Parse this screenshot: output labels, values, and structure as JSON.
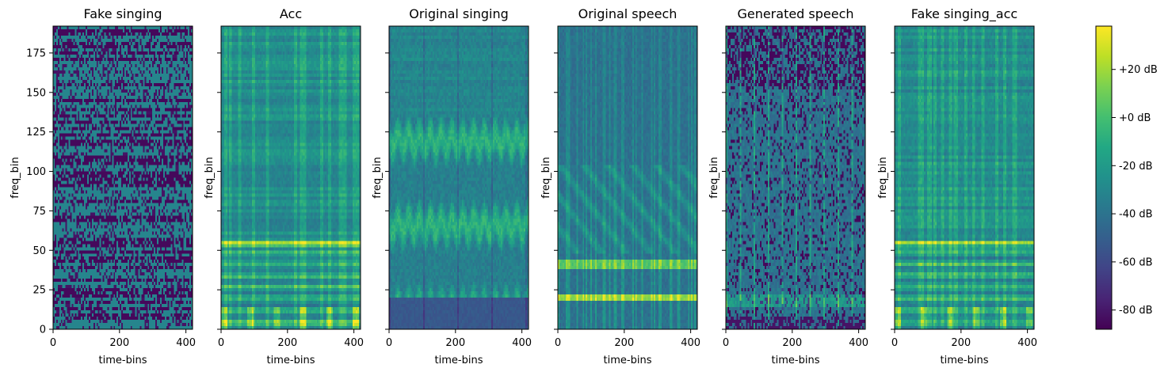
{
  "chart_data": [
    {
      "type": "heatmap",
      "title": "Fake singing",
      "xlabel": "time-bins",
      "ylabel": "freq_bin",
      "xlim": [
        0,
        420
      ],
      "ylim": [
        0,
        192
      ],
      "xticks": [
        0,
        200,
        400
      ],
      "yticks": [
        0,
        25,
        50,
        75,
        100,
        125,
        150,
        175
      ],
      "pattern": "binary-noise"
    },
    {
      "type": "heatmap",
      "title": "Acc",
      "xlabel": "time-bins",
      "ylabel": "freq_bin",
      "xlim": [
        0,
        420
      ],
      "ylim": [
        0,
        192
      ],
      "xticks": [
        0,
        200,
        400
      ],
      "pattern": "accompaniment"
    },
    {
      "type": "heatmap",
      "title": "Original singing",
      "xlabel": "time-bins",
      "ylabel": "freq_bin",
      "xlim": [
        0,
        420
      ],
      "ylim": [
        0,
        192
      ],
      "xticks": [
        0,
        200,
        400
      ],
      "pattern": "singing"
    },
    {
      "type": "heatmap",
      "title": "Original speech",
      "xlabel": "time-bins",
      "ylabel": "freq_bin",
      "xlim": [
        0,
        420
      ],
      "ylim": [
        0,
        192
      ],
      "xticks": [
        0,
        200,
        400
      ],
      "pattern": "speech"
    },
    {
      "type": "heatmap",
      "title": "Generated speech",
      "xlabel": "time-bins",
      "ylabel": "freq_bin",
      "xlim": [
        0,
        420
      ],
      "ylim": [
        0,
        192
      ],
      "xticks": [
        0,
        200,
        400
      ],
      "pattern": "generated"
    },
    {
      "type": "heatmap",
      "title": "Fake singing_acc",
      "xlabel": "time-bins",
      "ylabel": "freq_bin",
      "xlim": [
        0,
        420
      ],
      "ylim": [
        0,
        192
      ],
      "xticks": [
        0,
        200,
        400
      ],
      "pattern": "accompaniment-mix"
    }
  ],
  "colorbar": {
    "colormap": "viridis",
    "range_db": [
      -88,
      38
    ],
    "ticks": [
      {
        "value": 20,
        "label": "+20 dB"
      },
      {
        "value": 0,
        "label": "+0 dB"
      },
      {
        "value": -20,
        "label": "-20 dB"
      },
      {
        "value": -40,
        "label": "-40 dB"
      },
      {
        "value": -60,
        "label": "-60 dB"
      },
      {
        "value": -80,
        "label": "-80 dB"
      }
    ]
  }
}
